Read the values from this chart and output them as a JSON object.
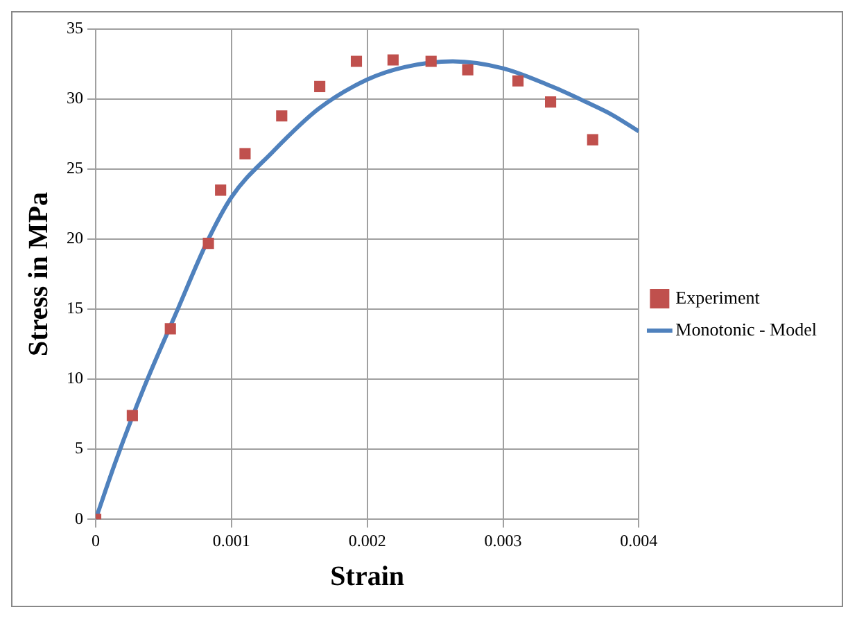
{
  "chart_data": {
    "type": "scatter",
    "xlabel": "Strain",
    "ylabel": "Stress in MPa",
    "xlim": [
      0,
      0.004
    ],
    "xticks": [
      0,
      0.001,
      0.002,
      0.003,
      0.004
    ],
    "ylim": [
      0,
      35
    ],
    "yticks": [
      0,
      5,
      10,
      15,
      20,
      25,
      30,
      35
    ],
    "grid": true,
    "legend": "right",
    "series": [
      {
        "name": "Experiment",
        "marker": "square",
        "color": "#c0504d",
        "x": [
          0,
          0.00027,
          0.00055,
          0.00083,
          0.00092,
          0.0011,
          0.00137,
          0.00165,
          0.00192,
          0.00219,
          0.00247,
          0.00274,
          0.00311,
          0.00335,
          0.00366
        ],
        "values": [
          0,
          7.4,
          13.6,
          19.7,
          23.5,
          26.1,
          28.8,
          30.9,
          32.7,
          32.8,
          32.7,
          32.1,
          31.3,
          29.8,
          27.1
        ]
      },
      {
        "name": "Monotonic - Model",
        "type": "line",
        "marker": "none",
        "line_style": "solid",
        "color": "#4f81bd",
        "x": [
          0,
          0.00015,
          0.00036,
          0.0006,
          0.00082,
          0.001,
          0.0013,
          0.00164,
          0.002,
          0.00228,
          0.00263,
          0.003,
          0.00336,
          0.00361,
          0.0038,
          0.004
        ],
        "values": [
          0,
          4.2,
          9.5,
          14.9,
          19.8,
          23,
          26.2,
          29.3,
          31.4,
          32.3,
          32.7,
          32.2,
          30.9,
          29.8,
          28.9,
          27.7
        ]
      }
    ]
  }
}
